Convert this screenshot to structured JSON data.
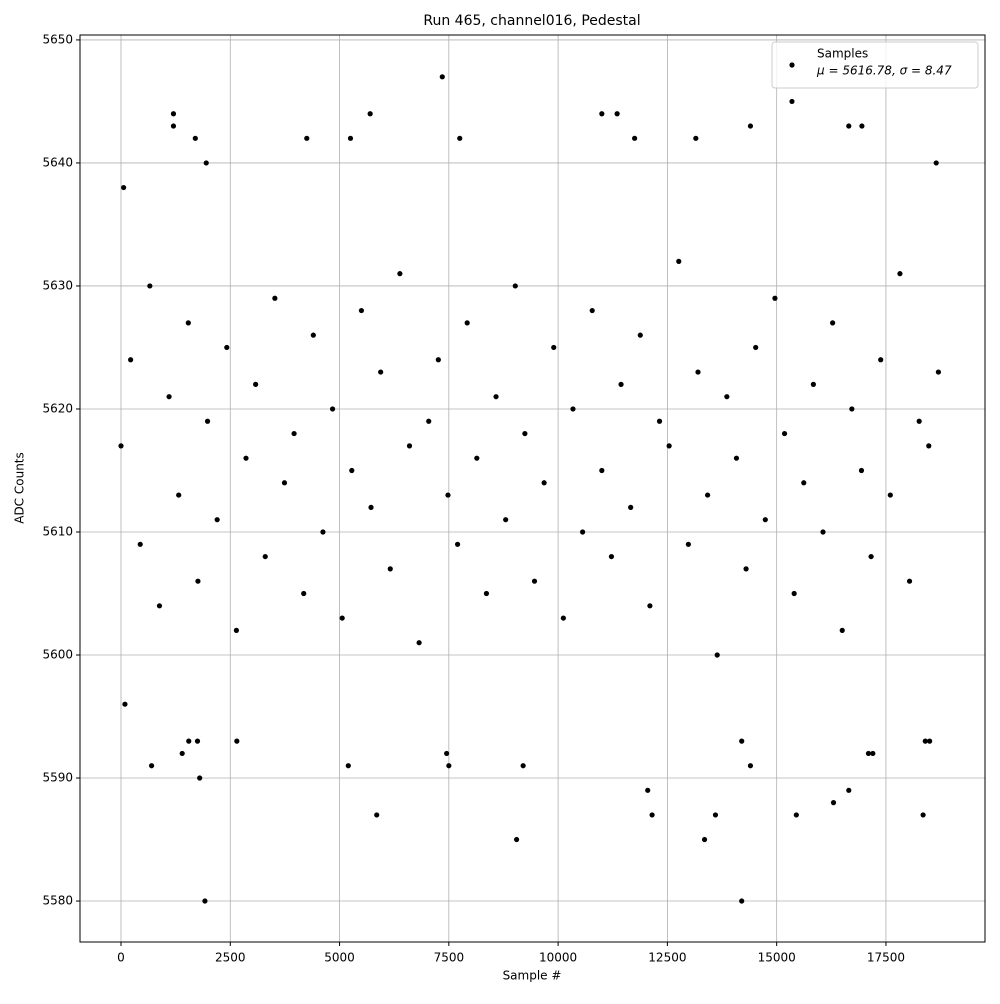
{
  "chart_data": {
    "type": "scatter",
    "title": "Run 465, channel016, Pedestal",
    "x_label": "Sample #",
    "y_label": "ADC Counts",
    "annotation": "μ = 5616.78, σ = 8.47",
    "x": [
      0,
      220,
      440,
      660,
      880,
      1100,
      1320,
      1540,
      1760,
      1980,
      2200,
      2420,
      2640,
      2860,
      3080,
      3300,
      3520,
      3740,
      3960,
      4180,
      4400,
      4620,
      4840,
      5060,
      5280,
      5500,
      5720,
      5940,
      6160,
      6380,
      6600,
      6820,
      7040,
      7260,
      7480,
      7700,
      7920,
      8140,
      8360,
      8580,
      8800,
      9020,
      9240,
      9460,
      9680,
      9900,
      10120,
      10340,
      10560,
      10780,
      11000,
      11220,
      11440,
      11660,
      11880,
      12100,
      12320,
      12540,
      12760,
      12980,
      13200,
      13420,
      13640,
      13860,
      14080,
      14300,
      14520,
      14740,
      14960,
      15180,
      15400,
      15620,
      15840,
      16060,
      16280,
      16500,
      16720,
      16940,
      17160,
      17380,
      17600,
      17820,
      18040,
      18260,
      18480,
      18700,
      1200,
      1200,
      1700,
      1950,
      1800,
      1920,
      700,
      7350,
      5700,
      9050,
      5850,
      12050,
      12150,
      13350,
      13600,
      14200,
      14400,
      15350,
      14400,
      15450,
      16300,
      16650,
      16650,
      16950,
      18350,
      18650,
      11000,
      11350,
      7750,
      5250,
      4250,
      13150,
      11750,
      1400,
      1750,
      5200,
      7500,
      9200,
      7450,
      1550,
      2650,
      17100,
      17200,
      60,
      90,
      14200,
      18400,
      18500
    ],
    "series": [
      {
        "name": "Samples",
        "color": "#000000",
        "values": [
          5617,
          5624,
          5609,
          5630,
          5604,
          5621,
          5613,
          5627,
          5606,
          5619,
          5611,
          5625,
          5602,
          5616,
          5622,
          5608,
          5629,
          5614,
          5618,
          5605,
          5626,
          5610,
          5620,
          5603,
          5615,
          5628,
          5612,
          5623,
          5607,
          5631,
          5617,
          5601,
          5619,
          5624,
          5613,
          5609,
          5627,
          5616,
          5605,
          5621,
          5611,
          5630,
          5618,
          5606,
          5614,
          5625,
          5603,
          5620,
          5610,
          5628,
          5615,
          5608,
          5622,
          5612,
          5626,
          5604,
          5619,
          5617,
          5632,
          5609,
          5623,
          5613,
          5600,
          5621,
          5616,
          5607,
          5625,
          5611,
          5629,
          5618,
          5605,
          5614,
          5622,
          5610,
          5627,
          5602,
          5620,
          5615,
          5608,
          5624,
          5613,
          5631,
          5606,
          5619,
          5617,
          5623,
          5644,
          5643,
          5642,
          5640,
          5590,
          5580,
          5591,
          5647,
          5644,
          5585,
          5587,
          5589,
          5587,
          5585,
          5587,
          5580,
          5591,
          5645,
          5643,
          5587,
          5588,
          5589,
          5643,
          5643,
          5587,
          5640,
          5644,
          5644,
          5642,
          5642,
          5642,
          5642,
          5642,
          5592,
          5593,
          5591,
          5591,
          5591,
          5592,
          5593,
          5593,
          5592,
          5592,
          5638,
          5596,
          5593,
          5593,
          5593
        ]
      }
    ],
    "xlim": [
      -938,
      19766
    ],
    "ylim": [
      5576.67,
      5650.4
    ],
    "xticks": [
      0,
      2500,
      5000,
      7500,
      10000,
      12500,
      15000,
      17500
    ],
    "yticks": [
      5580,
      5590,
      5600,
      5610,
      5620,
      5630,
      5640,
      5650
    ],
    "grid": true,
    "legend": "upper right"
  }
}
